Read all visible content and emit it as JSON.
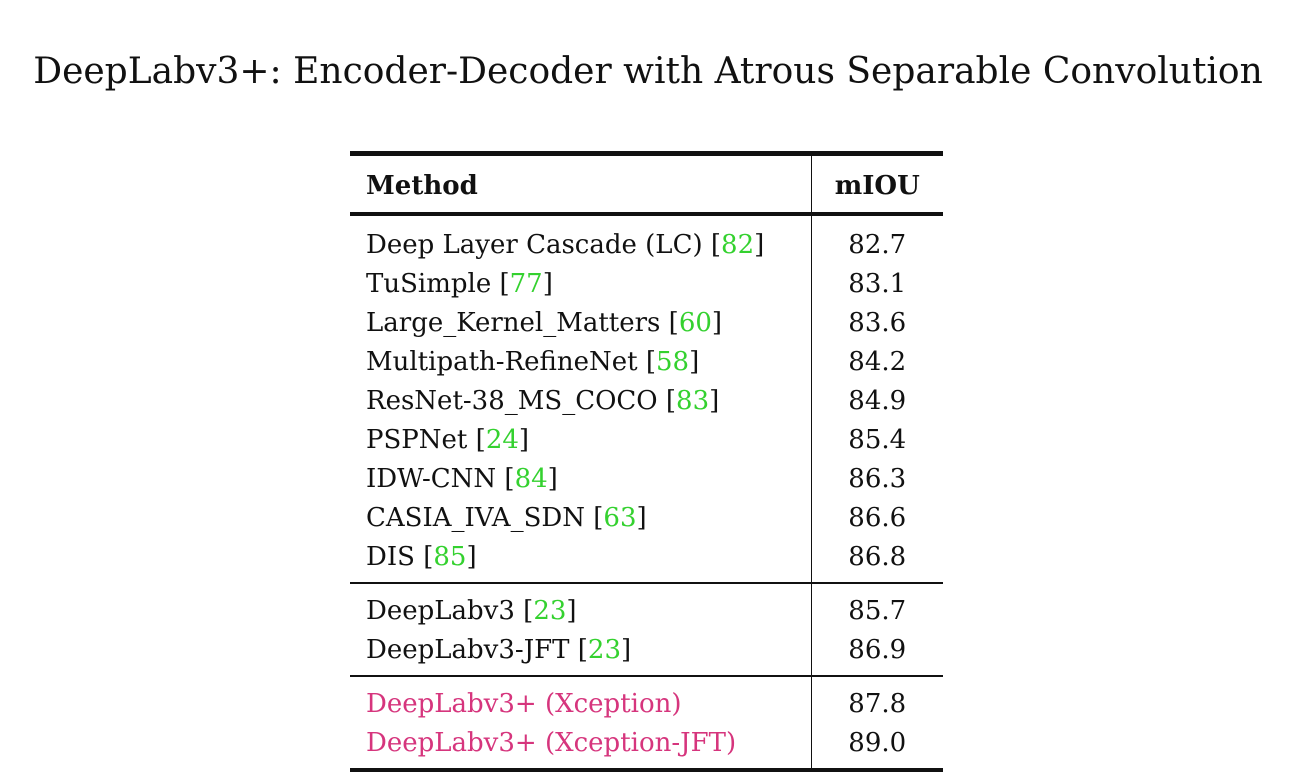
{
  "title": "DeepLabv3+: Encoder-Decoder with Atrous Separable Convolution",
  "table": {
    "headers": {
      "method": "Method",
      "score": "mIOU"
    },
    "groups": [
      {
        "rows": [
          {
            "method": "Deep Layer Cascade (LC)",
            "ref": "82",
            "score": "82.7"
          },
          {
            "method": "TuSimple",
            "ref": "77",
            "score": "83.1"
          },
          {
            "method": "Large_Kernel_Matters",
            "ref": "60",
            "score": "83.6"
          },
          {
            "method": "Multipath-RefineNet",
            "ref": "58",
            "score": "84.2"
          },
          {
            "method": "ResNet-38_MS_COCO",
            "ref": "83",
            "score": "84.9"
          },
          {
            "method": "PSPNet",
            "ref": "24",
            "score": "85.4"
          },
          {
            "method": "IDW-CNN",
            "ref": "84",
            "score": "86.3"
          },
          {
            "method": "CASIA_IVA_SDN",
            "ref": "63",
            "score": "86.6"
          },
          {
            "method": "DIS",
            "ref": "85",
            "score": "86.8"
          }
        ]
      },
      {
        "rows": [
          {
            "method": "DeepLabv3",
            "ref": "23",
            "score": "85.7"
          },
          {
            "method": "DeepLabv3-JFT",
            "ref": "23",
            "score": "86.9"
          }
        ]
      },
      {
        "rows": [
          {
            "method": "DeepLabv3+ (Xception)",
            "score": "87.8"
          },
          {
            "method": "DeepLabv3+ (Xception-JFT)",
            "score": "89.0"
          }
        ]
      }
    ]
  },
  "colors": {
    "reference": "#34d12f",
    "highlight": "#d6357d",
    "text": "#111111"
  }
}
